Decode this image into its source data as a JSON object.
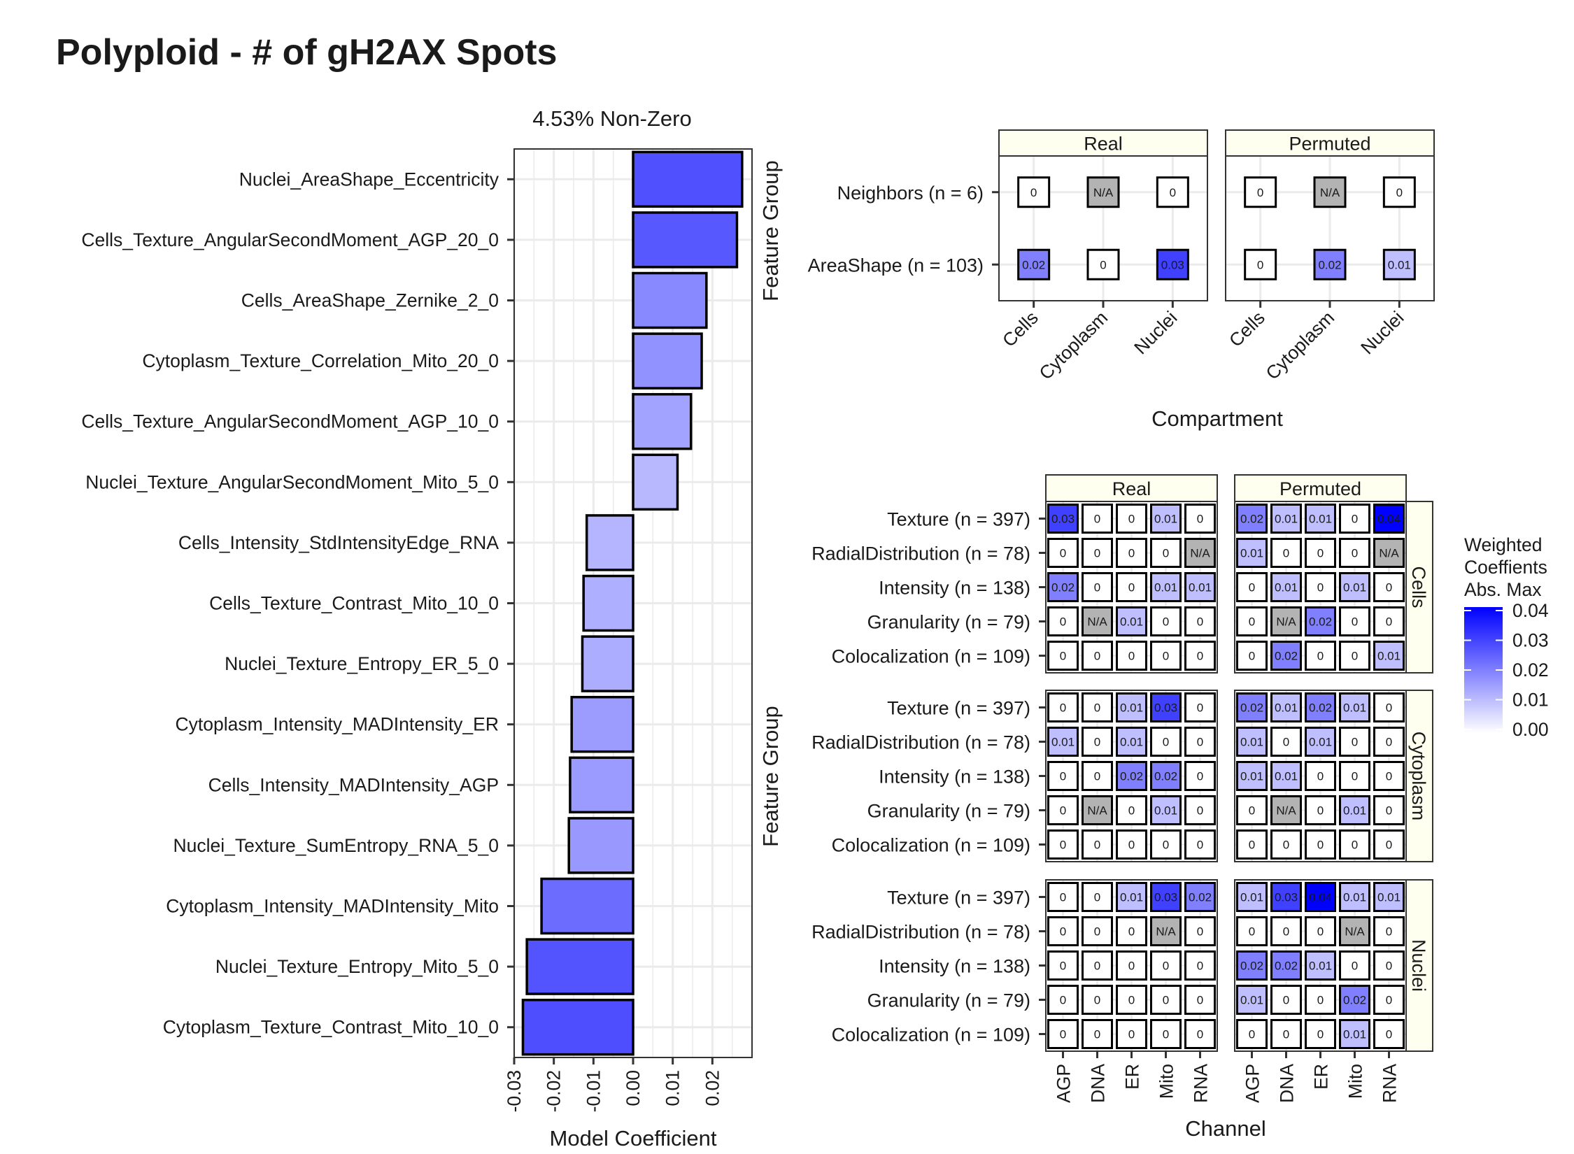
{
  "title": "Polyploid - # of gH2AX Spots",
  "chart_data": [
    {
      "type": "bar",
      "subtitle": "4.53% Non-Zero",
      "xlabel": "Model Coefficient",
      "ylabel": "",
      "xlim": [
        -0.03,
        0.03
      ],
      "xticks": [
        "-0.03",
        "-0.02",
        "-0.01",
        "0.00",
        "0.01",
        "0.02"
      ],
      "categories": [
        "Nuclei_AreaShape_Eccentricity",
        "Cells_Texture_AngularSecondMoment_AGP_20_0",
        "Cells_AreaShape_Zernike_2_0",
        "Cytoplasm_Texture_Correlation_Mito_20_0",
        "Cells_Texture_AngularSecondMoment_AGP_10_0",
        "Nuclei_Texture_AngularSecondMoment_Mito_5_0",
        "Cells_Intensity_StdIntensityEdge_RNA",
        "Cells_Texture_Contrast_Mito_10_0",
        "Nuclei_Texture_Entropy_ER_5_0",
        "Cytoplasm_Intensity_MADIntensity_ER",
        "Cells_Intensity_MADIntensity_AGP",
        "Nuclei_Texture_SumEntropy_RNA_5_0",
        "Cytoplasm_Intensity_MADIntensity_Mito",
        "Nuclei_Texture_Entropy_Mito_5_0",
        "Cytoplasm_Texture_Contrast_Mito_10_0"
      ],
      "values": [
        0.0275,
        0.0262,
        0.0185,
        0.0173,
        0.0146,
        0.0112,
        -0.0117,
        -0.0125,
        -0.0128,
        -0.0155,
        -0.0159,
        -0.0162,
        -0.0231,
        -0.0268,
        -0.0278
      ]
    },
    {
      "type": "heatmap",
      "xlabel": "Compartment",
      "ylabel": "Feature Group",
      "columns": [
        "Cells",
        "Cytoplasm",
        "Nuclei"
      ],
      "rows": [
        "Neighbors (n = 6)",
        "AreaShape (n = 103)"
      ],
      "panels": [
        {
          "name": "Real",
          "cells": [
            [
              "0",
              "N/A",
              "0"
            ],
            [
              "0.02",
              "0",
              "0.03"
            ]
          ]
        },
        {
          "name": "Permuted",
          "cells": [
            [
              "0",
              "N/A",
              "0"
            ],
            [
              "0",
              "0.02",
              "0.01"
            ]
          ]
        }
      ]
    },
    {
      "type": "heatmap",
      "xlabel": "Channel",
      "ylabel": "Feature Group",
      "columns": [
        "AGP",
        "DNA",
        "ER",
        "Mito",
        "RNA"
      ],
      "rows": [
        "Texture (n = 397)",
        "RadialDistribution (n = 78)",
        "Intensity (n = 138)",
        "Granularity (n = 79)",
        "Colocalization (n = 109)"
      ],
      "facets": [
        {
          "name": "Cells",
          "panels": [
            {
              "name": "Real",
              "cells": [
                [
                  "0.03",
                  "0",
                  "0",
                  "0.01",
                  "0"
                ],
                [
                  "0",
                  "0",
                  "0",
                  "0",
                  "N/A"
                ],
                [
                  "0.02",
                  "0",
                  "0",
                  "0.01",
                  "0.01"
                ],
                [
                  "0",
                  "N/A",
                  "0.01",
                  "0",
                  "0"
                ],
                [
                  "0",
                  "0",
                  "0",
                  "0",
                  "0"
                ]
              ]
            },
            {
              "name": "Permuted",
              "cells": [
                [
                  "0.02",
                  "0.01",
                  "0.01",
                  "0",
                  "0.04"
                ],
                [
                  "0.01",
                  "0",
                  "0",
                  "0",
                  "N/A"
                ],
                [
                  "0",
                  "0.01",
                  "0",
                  "0.01",
                  "0"
                ],
                [
                  "0",
                  "N/A",
                  "0.02",
                  "0",
                  "0"
                ],
                [
                  "0",
                  "0.02",
                  "0",
                  "0",
                  "0.01"
                ]
              ]
            }
          ]
        },
        {
          "name": "Cytoplasm",
          "panels": [
            {
              "name": "Real",
              "cells": [
                [
                  "0",
                  "0",
                  "0.01",
                  "0.03",
                  "0"
                ],
                [
                  "0.01",
                  "0",
                  "0.01",
                  "0",
                  "0"
                ],
                [
                  "0",
                  "0",
                  "0.02",
                  "0.02",
                  "0"
                ],
                [
                  "0",
                  "N/A",
                  "0",
                  "0.01",
                  "0"
                ],
                [
                  "0",
                  "0",
                  "0",
                  "0",
                  "0"
                ]
              ]
            },
            {
              "name": "Permuted",
              "cells": [
                [
                  "0.02",
                  "0.01",
                  "0.02",
                  "0.01",
                  "0"
                ],
                [
                  "0.01",
                  "0",
                  "0.01",
                  "0",
                  "0"
                ],
                [
                  "0.01",
                  "0.01",
                  "0",
                  "0",
                  "0"
                ],
                [
                  "0",
                  "N/A",
                  "0",
                  "0.01",
                  "0"
                ],
                [
                  "0",
                  "0",
                  "0",
                  "0",
                  "0"
                ]
              ]
            }
          ]
        },
        {
          "name": "Nuclei",
          "panels": [
            {
              "name": "Real",
              "cells": [
                [
                  "0",
                  "0",
                  "0.01",
                  "0.03",
                  "0.02"
                ],
                [
                  "0",
                  "0",
                  "0",
                  "N/A",
                  "0"
                ],
                [
                  "0",
                  "0",
                  "0",
                  "0",
                  "0"
                ],
                [
                  "0",
                  "0",
                  "0",
                  "0",
                  "0"
                ],
                [
                  "0",
                  "0",
                  "0",
                  "0",
                  "0"
                ]
              ]
            },
            {
              "name": "Permuted",
              "cells": [
                [
                  "0.01",
                  "0.03",
                  "0.04",
                  "0.01",
                  "0.01"
                ],
                [
                  "0",
                  "0",
                  "0",
                  "N/A",
                  "0"
                ],
                [
                  "0.02",
                  "0.02",
                  "0.01",
                  "0",
                  "0"
                ],
                [
                  "0.01",
                  "0",
                  "0",
                  "0.02",
                  "0"
                ],
                [
                  "0",
                  "0",
                  "0",
                  "0.01",
                  "0"
                ]
              ]
            }
          ]
        }
      ]
    }
  ],
  "legend": {
    "title": [
      "Weighted",
      "Coeffients",
      "Abs. Max"
    ],
    "ticks": [
      "0.04",
      "0.03",
      "0.02",
      "0.01",
      "0.00"
    ],
    "max": 0.04
  },
  "colors": {
    "high": "#0000ff",
    "low": "#ffffff",
    "na_fill": "#b3b3b3",
    "strip_fill": "#fffff0",
    "grid": "#ebebeb"
  }
}
